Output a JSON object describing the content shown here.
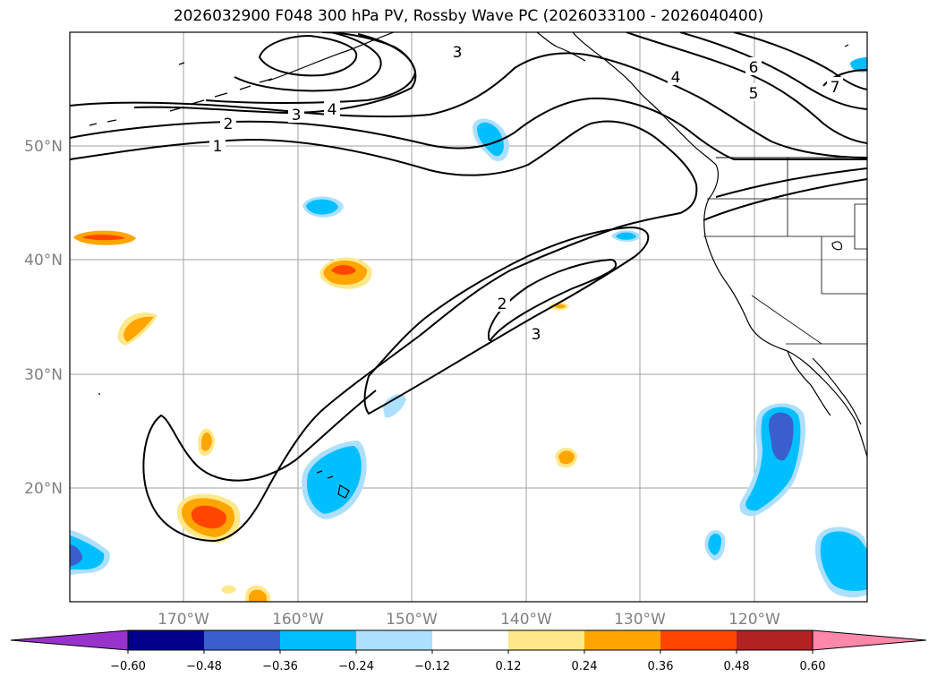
{
  "title": "2026032900 F048 300 hPa PV, Rossby Wave PC (2026033100 - 2026040400)",
  "lat_labels": [
    "20°N",
    "30°N",
    "40°N",
    "50°N"
  ],
  "lon_labels": [
    "170°W",
    "160°W",
    "150°W",
    "140°W",
    "130°W",
    "120°W"
  ],
  "colorbar": {
    "ticks": [
      "−0.60",
      "−0.48",
      "−0.36",
      "−0.24",
      "−0.12",
      "0.12",
      "0.24",
      "0.36",
      "0.48",
      "0.60"
    ],
    "colors": [
      "#9932CC",
      "#00008B",
      "#3A5FCD",
      "#00BFFF",
      "#ADDFFF",
      "#FFFFFF",
      "#FFE88A",
      "#FFA500",
      "#FF4500",
      "#B22222",
      "#FF88AA"
    ]
  },
  "contour_labels": [
    "1",
    "2",
    "3",
    "4",
    "5",
    "6",
    "7",
    "2",
    "3"
  ],
  "colors": {
    "strong_neg": "#3A5FCD",
    "neg": "#00BFFF",
    "weak_neg": "#ADDFFF",
    "weak_pos": "#FFE88A",
    "pos": "#FFA500",
    "strong_pos": "#FF4500"
  }
}
